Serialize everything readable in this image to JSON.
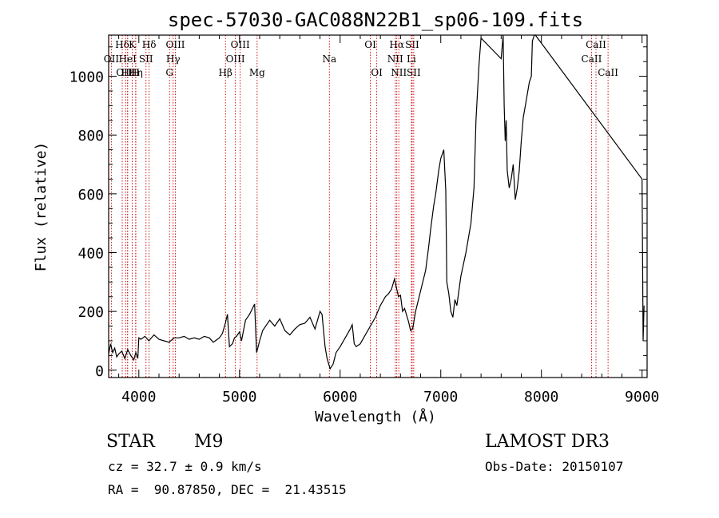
{
  "chart_data": {
    "type": "line",
    "title": "spec-57030-GAC088N22B1_sp06-109.fits",
    "xlabel": "Wavelength (Å)",
    "ylabel": "Flux (relative)",
    "xlim": [
      3700,
      9050
    ],
    "ylim": [
      -25,
      1140
    ],
    "x_ticks": [
      4000,
      5000,
      6000,
      7000,
      8000,
      9000
    ],
    "y_ticks": [
      0,
      200,
      400,
      600,
      800,
      1000
    ],
    "grid": false,
    "series": [
      {
        "x": [
          3700,
          3720,
          3740,
          3760,
          3780,
          3800,
          3830,
          3860,
          3890,
          3920,
          3950,
          3970,
          3990,
          4000,
          4020,
          4060,
          4100,
          4150,
          4200,
          4250,
          4300,
          4350,
          4400,
          4450,
          4500,
          4550,
          4600,
          4650,
          4700,
          4740,
          4780,
          4800,
          4830,
          4860,
          4880,
          4900,
          4930,
          4950,
          4970,
          5000,
          5020,
          5060,
          5100,
          5150,
          5170,
          5200,
          5230,
          5300,
          5350,
          5400,
          5450,
          5500,
          5550,
          5600,
          5650,
          5700,
          5750,
          5800,
          5820,
          5850,
          5870,
          5900,
          5930,
          5960,
          6000,
          6050,
          6100,
          6120,
          6140,
          6160,
          6200,
          6250,
          6300,
          6350,
          6400,
          6450,
          6480,
          6510,
          6540,
          6560,
          6580,
          6600,
          6620,
          6640,
          6680,
          6700,
          6720,
          6750,
          6800,
          6850,
          6880,
          6900,
          6930,
          6950,
          6980,
          7000,
          7030,
          7050,
          7060,
          7080,
          7100,
          7120,
          7140,
          7160,
          7200,
          7250,
          7300,
          7330,
          7350,
          7380,
          7400,
          7600,
          7620,
          7630,
          7640,
          7650,
          7660,
          7680,
          7700,
          7720,
          7740,
          7760,
          7780,
          7800,
          7820,
          7840,
          7860,
          7880,
          7900,
          7910,
          7920,
          7930,
          7940,
          9000,
          9010,
          9020
        ],
        "y": [
          55,
          90,
          60,
          75,
          45,
          55,
          65,
          40,
          70,
          50,
          35,
          60,
          40,
          110,
          105,
          115,
          100,
          120,
          105,
          100,
          95,
          110,
          110,
          115,
          105,
          110,
          105,
          115,
          110,
          95,
          105,
          110,
          125,
          160,
          190,
          80,
          90,
          110,
          115,
          130,
          100,
          170,
          190,
          225,
          60,
          100,
          135,
          170,
          150,
          175,
          135,
          120,
          140,
          155,
          160,
          180,
          140,
          200,
          190,
          80,
          40,
          5,
          20,
          60,
          80,
          110,
          140,
          155,
          90,
          80,
          90,
          120,
          150,
          180,
          220,
          250,
          260,
          275,
          310,
          280,
          250,
          255,
          200,
          210,
          165,
          135,
          140,
          200,
          270,
          340,
          420,
          480,
          560,
          600,
          680,
          720,
          750,
          610,
          300,
          260,
          200,
          180,
          240,
          220,
          320,
          400,
          500,
          620,
          850,
          1040,
          1130,
          1060,
          1150,
          900,
          780,
          850,
          680,
          620,
          650,
          700,
          580,
          620,
          680,
          780,
          860,
          900,
          940,
          980,
          1000,
          1120,
          1130,
          1140,
          1150,
          650,
          100,
          220
        ]
      }
    ],
    "lines": [
      {
        "name": "Hδ",
        "x": 3835,
        "row": 0
      },
      {
        "name": "OII",
        "x": 3727,
        "row": 1
      },
      {
        "name": "OIII",
        "x": 3869,
        "row": 2
      },
      {
        "name": "Hε",
        "x": 3889,
        "row": 2
      },
      {
        "name": "Hη",
        "x": 3970,
        "row": 2
      },
      {
        "name": "K",
        "x": 3934,
        "row": 0
      },
      {
        "name": "HeI",
        "x": 3888,
        "row": 1
      },
      {
        "name": "SII",
        "x": 4071,
        "row": 1
      },
      {
        "name": "H",
        "x": 3968,
        "row": 2
      },
      {
        "name": "Hδ",
        "x": 4102,
        "row": 0
      },
      {
        "name": "OIII",
        "x": 4363,
        "row": 0
      },
      {
        "name": "Hγ",
        "x": 4341,
        "row": 1
      },
      {
        "name": "G",
        "x": 4305,
        "row": 2
      },
      {
        "name": "Hβ",
        "x": 4861,
        "row": 2
      },
      {
        "name": "OIII",
        "x": 5007,
        "row": 0
      },
      {
        "name": "OIII",
        "x": 4959,
        "row": 1
      },
      {
        "name": "Mg",
        "x": 5175,
        "row": 2
      },
      {
        "name": "Na",
        "x": 5893,
        "row": 1
      },
      {
        "name": "OI",
        "x": 6300,
        "row": 0
      },
      {
        "name": "OI",
        "x": 6364,
        "row": 2
      },
      {
        "name": "Hα",
        "x": 6563,
        "row": 0
      },
      {
        "name": "NII",
        "x": 6548,
        "row": 1
      },
      {
        "name": "NII",
        "x": 6583,
        "row": 2
      },
      {
        "name": "SII",
        "x": 6716,
        "row": 0
      },
      {
        "name": "Li",
        "x": 6708,
        "row": 1
      },
      {
        "name": "SII",
        "x": 6731,
        "row": 2
      },
      {
        "name": "CaII",
        "x": 8542,
        "row": 0
      },
      {
        "name": "CaII",
        "x": 8498,
        "row": 1
      },
      {
        "name": "CaII",
        "x": 8662,
        "row": 2
      }
    ],
    "line_color": "#cc0000"
  },
  "info": {
    "object_class": "STAR",
    "subclass": "M9",
    "survey": "LAMOST DR3",
    "cz": "cz = 32.7 ± 0.9 km/s",
    "obs_date": "Obs-Date: 20150107",
    "coords": "RA =  90.87850, DEC =  21.43515"
  }
}
